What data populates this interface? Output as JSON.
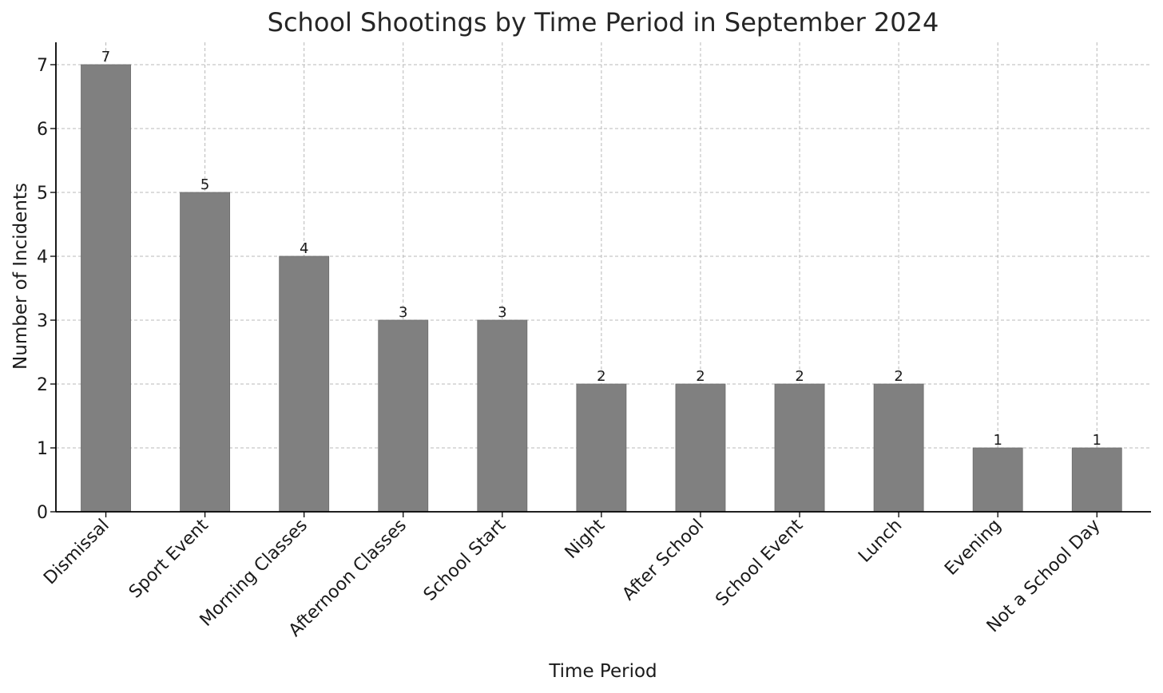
{
  "chart_data": {
    "type": "bar",
    "title": "School Shootings by Time Period in September 2024",
    "xlabel": "Time Period",
    "ylabel": "Number of Incidents",
    "categories": [
      "Dismissal",
      "Sport Event",
      "Morning Classes",
      "Afternoon Classes",
      "School Start",
      "Night",
      "After School",
      "School Event",
      "Lunch",
      "Evening",
      "Not a School Day"
    ],
    "values": [
      7,
      5,
      4,
      3,
      3,
      2,
      2,
      2,
      2,
      1,
      1
    ],
    "yticks": [
      "0",
      "1",
      "2",
      "3",
      "4",
      "5",
      "6",
      "7"
    ],
    "ylim": [
      0,
      7.35
    ],
    "grid": true,
    "bar_color": "#808080",
    "bar_edge_color": "#6b6b6b",
    "data_labels": true
  }
}
